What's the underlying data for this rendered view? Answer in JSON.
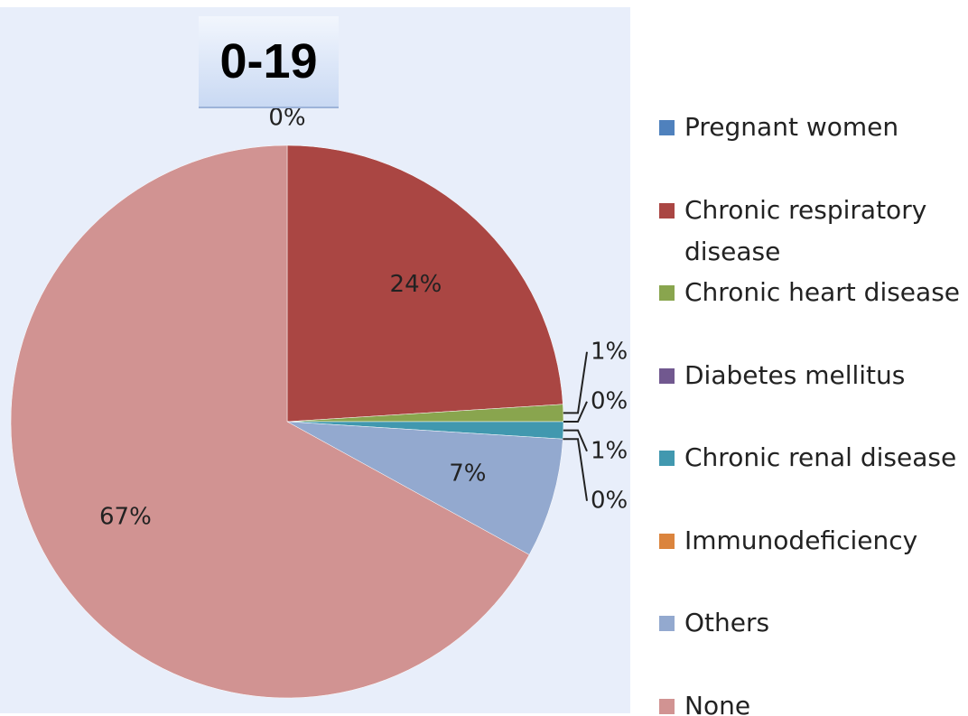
{
  "chart_data": {
    "type": "pie",
    "title": "0-19",
    "categories": [
      "Pregnant women",
      "Chronic respiratory disease",
      "Chronic heart disease",
      "Diabetes mellitus",
      "Chronic renal disease",
      "Immunodeficiency",
      "Others",
      "None"
    ],
    "values": [
      0,
      24,
      1,
      0,
      1,
      0,
      7,
      67
    ],
    "value_labels": [
      "0%",
      "24%",
      "1%",
      "0%",
      "1%",
      "0%",
      "7%",
      "67%"
    ],
    "colors": [
      "#4f81bd",
      "#aa4643",
      "#89a54e",
      "#71588f",
      "#4198af",
      "#db843d",
      "#93a9cf",
      "#d19392"
    ],
    "legend": "right"
  }
}
